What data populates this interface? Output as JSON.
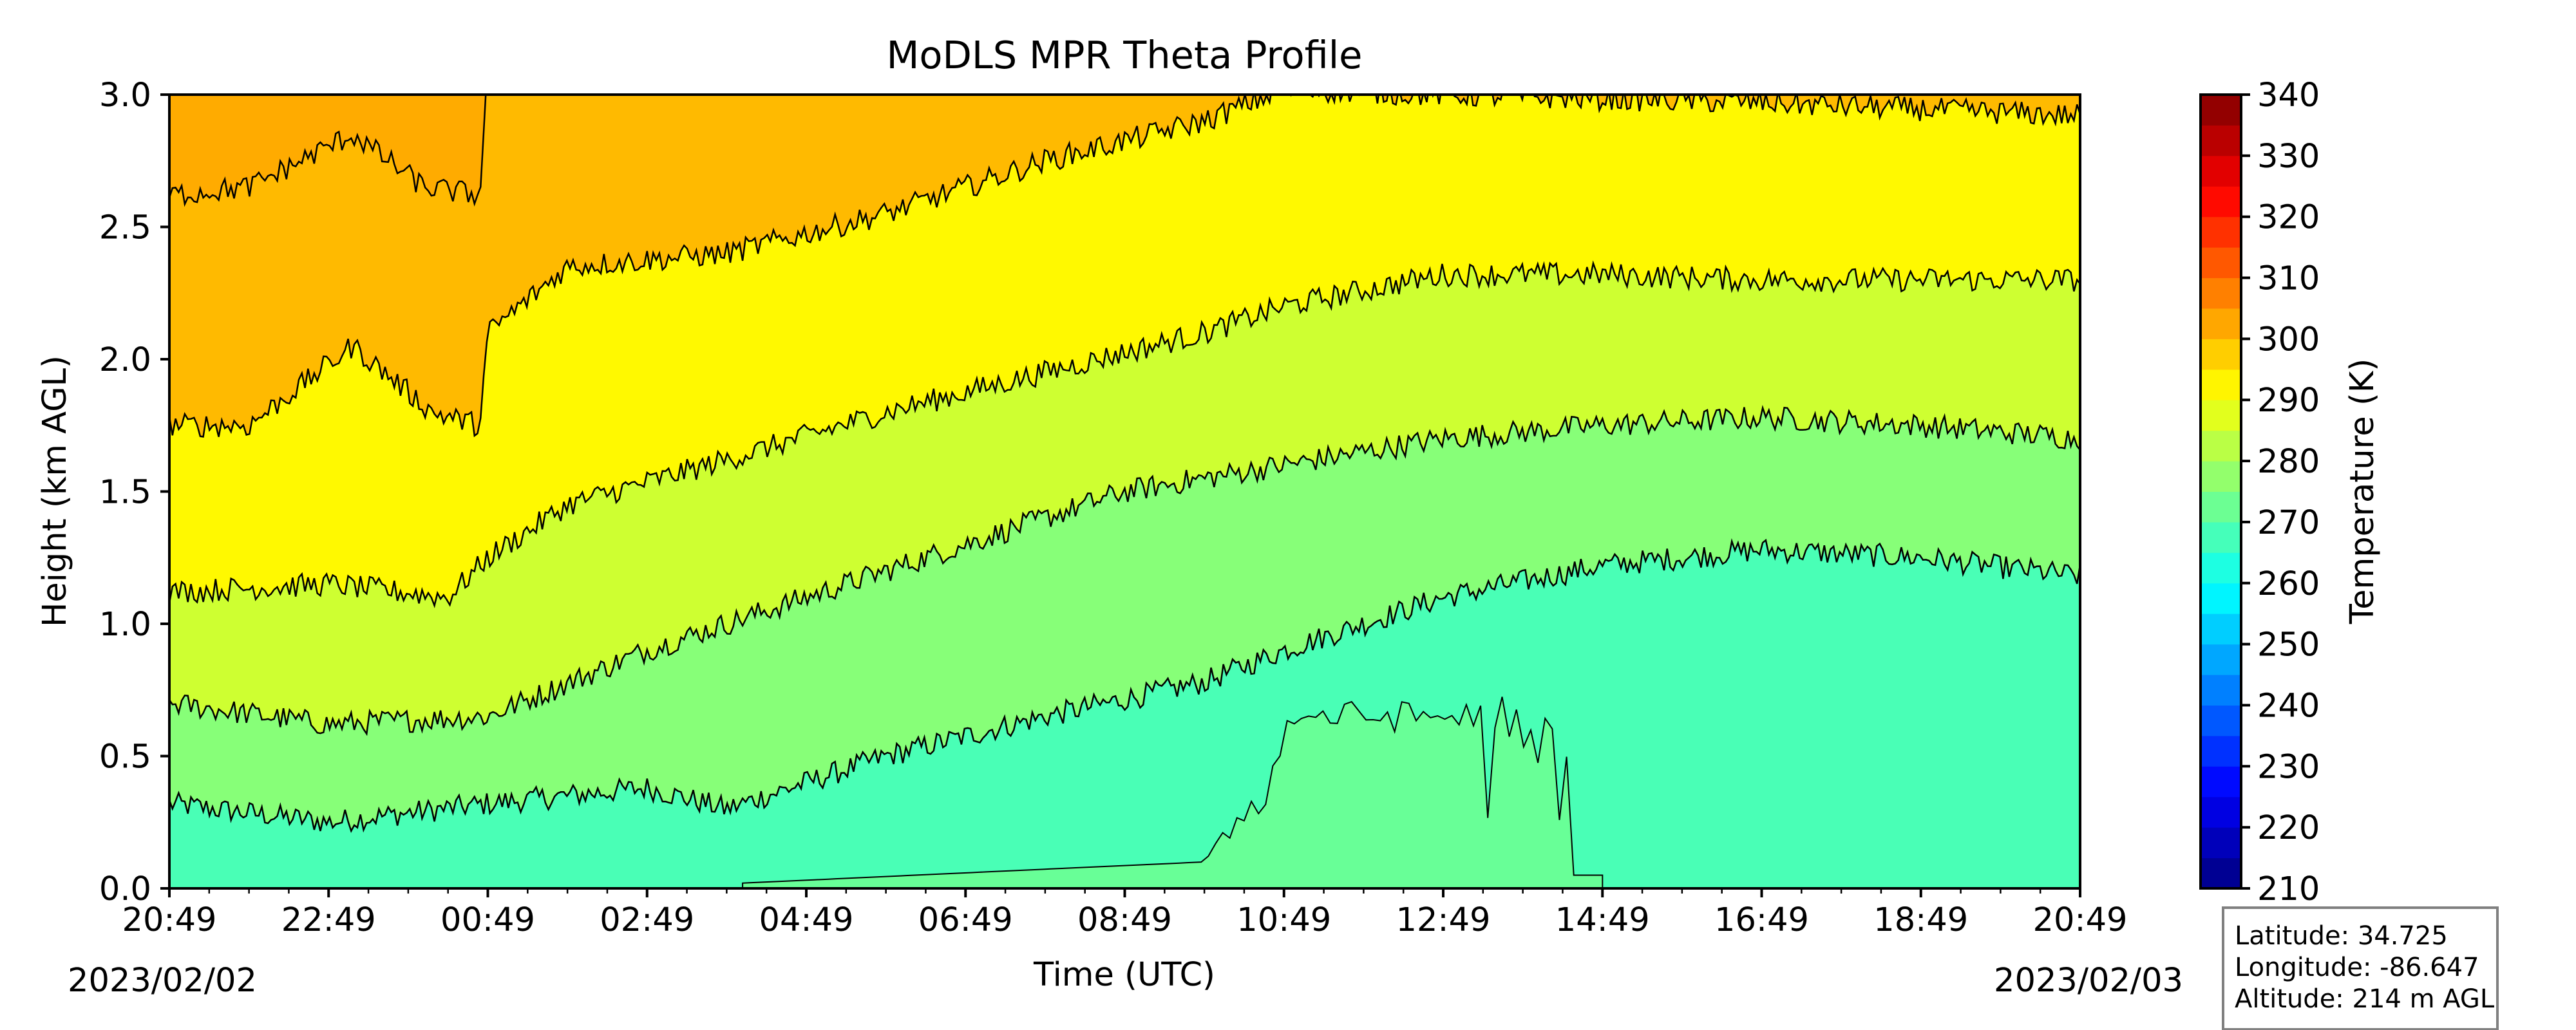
{
  "chart_data": {
    "type": "heatmap",
    "title": "MoDLS MPR Theta Profile",
    "xlabel": "Time (UTC)",
    "ylabel": "Height (km AGL)",
    "x_tick_labels": [
      "20:49",
      "22:49",
      "00:49",
      "02:49",
      "04:49",
      "06:49",
      "08:49",
      "10:49",
      "12:49",
      "14:49",
      "16:49",
      "18:49",
      "20:49"
    ],
    "x_hours_from_start": [
      0,
      2,
      4,
      6,
      8,
      10,
      12,
      14,
      16,
      18,
      20,
      22,
      24
    ],
    "xlim_hours": [
      0,
      24
    ],
    "start_date": "2023/02/02",
    "end_date": "2023/02/03",
    "y_ticks": [
      0.0,
      0.5,
      1.0,
      1.5,
      2.0,
      2.5,
      3.0
    ],
    "ylim": [
      0.0,
      3.0
    ],
    "colorbar": {
      "label": "Temperature (K)",
      "ticks": [
        210,
        220,
        230,
        240,
        250,
        260,
        270,
        280,
        290,
        300,
        310,
        320,
        330,
        340
      ],
      "range": [
        210,
        340
      ],
      "colormap": "jet"
    },
    "contour_levels_K": [
      270,
      280,
      290,
      300
    ],
    "grid": false,
    "info_box": {
      "latitude": "Latitude: 34.725",
      "longitude": "Longitude: -86.647",
      "altitude": "Altitude: 214 m AGL"
    }
  }
}
